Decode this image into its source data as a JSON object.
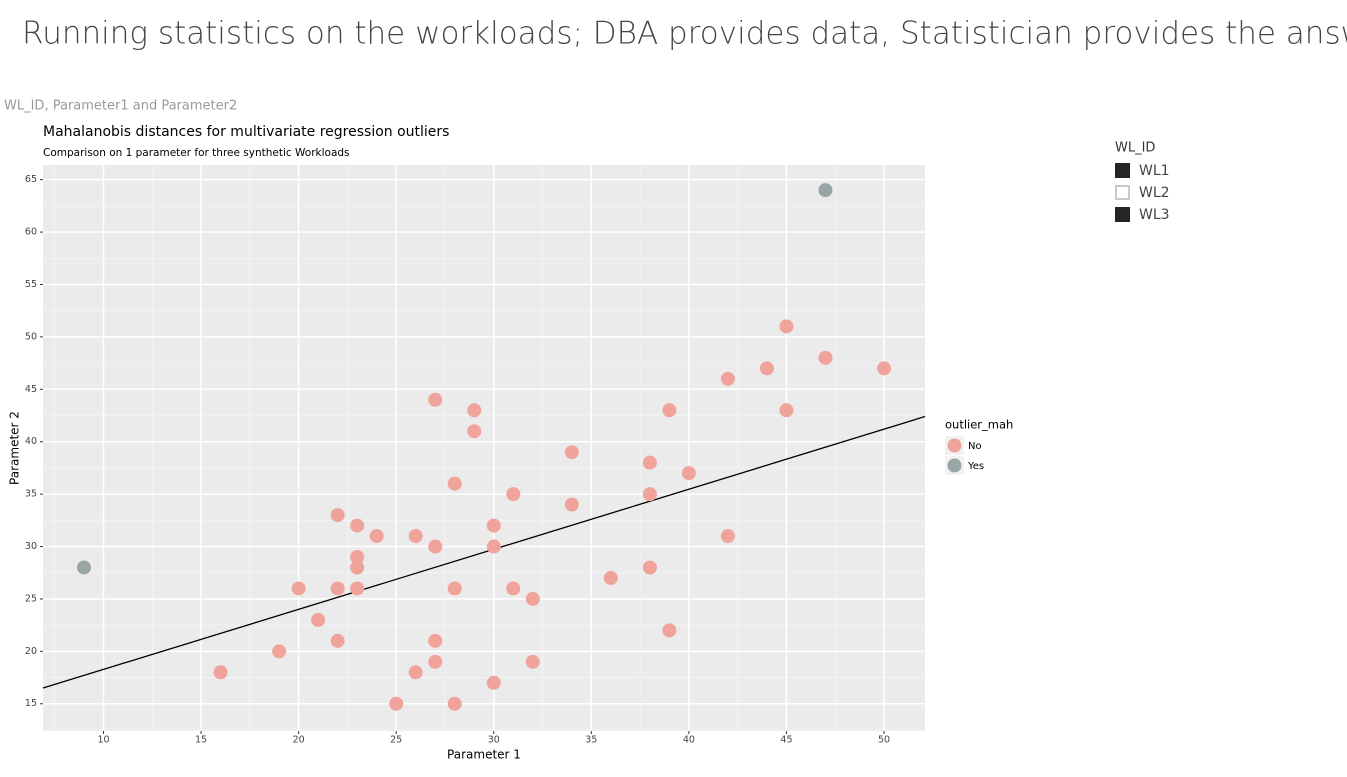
{
  "header": {
    "title": "Running statistics on the workloads; DBA provides data, Statistician provides the answers"
  },
  "visual_label": "WL_ID, Parameter1 and Parameter2",
  "slicer": {
    "title": "WL_ID",
    "items": [
      {
        "label": "WL1",
        "selected": true
      },
      {
        "label": "WL2",
        "selected": false
      },
      {
        "label": "WL3",
        "selected": true
      }
    ]
  },
  "chart_data": {
    "type": "scatter",
    "title": "Mahalanobis distances for multivariate regression outliers",
    "subtitle": "Comparison on 1 parameter for three synthetic Workloads",
    "xlabel": "Parameter 1",
    "ylabel": "Parameter 2",
    "xlim": [
      6.9,
      52.1
    ],
    "ylim": [
      12.4,
      66.4
    ],
    "xticks": [
      10,
      15,
      20,
      25,
      30,
      35,
      40,
      45,
      50
    ],
    "yticks": [
      15,
      20,
      25,
      30,
      35,
      40,
      45,
      50,
      55,
      60,
      65
    ],
    "grid": true,
    "minor_grid": true,
    "legend_title": "outlier_mah",
    "legend_position": "right",
    "series": [
      {
        "name": "No",
        "color": "#f0a39b",
        "x": [
          45,
          47,
          50,
          44,
          42,
          39,
          45,
          27,
          29,
          29,
          34,
          38,
          40,
          28,
          31,
          38,
          34,
          22,
          23,
          30,
          24,
          26,
          42,
          27,
          30,
          23,
          23,
          38,
          36,
          20,
          22,
          23,
          28,
          31,
          32,
          21,
          39,
          22,
          27,
          19,
          27,
          32,
          16,
          26,
          30,
          25,
          28
        ],
        "y": [
          51,
          48,
          47,
          47,
          46,
          43,
          43,
          44,
          43,
          41,
          39,
          38,
          37,
          36,
          35,
          35,
          34,
          33,
          32,
          32,
          31,
          31,
          31,
          30,
          30,
          29,
          28,
          28,
          27,
          26,
          26,
          26,
          26,
          26,
          25,
          23,
          22,
          21,
          21,
          20,
          19,
          19,
          18,
          18,
          17,
          15,
          15
        ]
      },
      {
        "name": "Yes",
        "color": "#9aa5a6",
        "x": [
          9,
          47
        ],
        "y": [
          28,
          64
        ]
      }
    ],
    "trend_line": {
      "color": "#000000",
      "x": [
        6.9,
        52.1
      ],
      "y": [
        16.5,
        42.4
      ]
    }
  }
}
